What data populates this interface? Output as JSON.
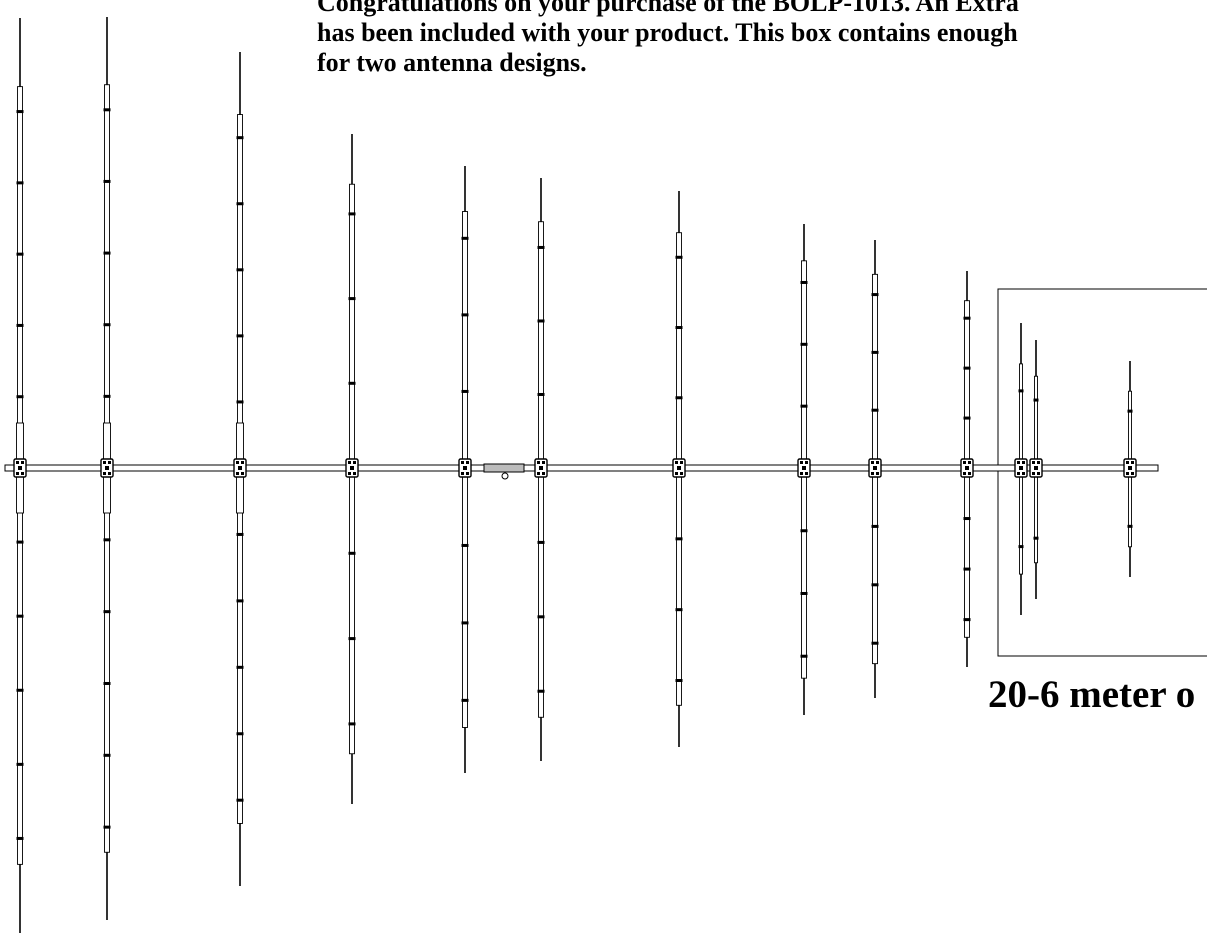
{
  "intro": {
    "lines": [
      "Congratulations on your purchase of the BOLP-1013.  An Extra",
      "has been included with your product.  This box contains enough",
      "for two antenna designs."
    ]
  },
  "caption": "20-6 meter o",
  "colors": {
    "ink": "#000000",
    "tube_fill": "#ffffff",
    "bracket_fill": "#bcbcbc"
  },
  "boom": {
    "label": "boom"
  },
  "elements": [
    {
      "name": "element-1"
    },
    {
      "name": "element-2"
    },
    {
      "name": "element-3"
    },
    {
      "name": "element-4"
    },
    {
      "name": "element-5"
    },
    {
      "name": "element-6"
    },
    {
      "name": "element-7"
    },
    {
      "name": "element-8"
    },
    {
      "name": "element-9"
    },
    {
      "name": "element-10"
    },
    {
      "name": "element-11"
    },
    {
      "name": "element-12"
    },
    {
      "name": "element-13"
    }
  ]
}
